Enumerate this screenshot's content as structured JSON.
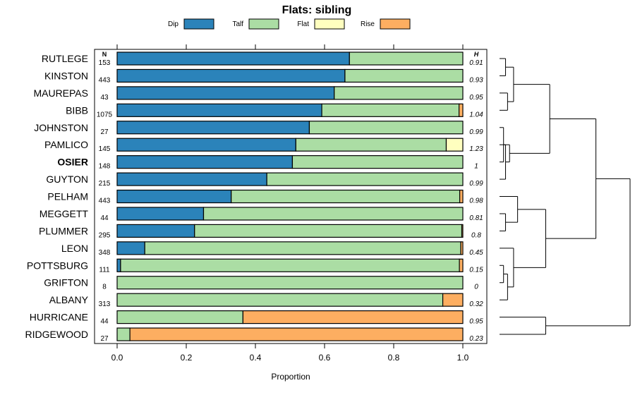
{
  "chart_data": {
    "type": "bar",
    "orientation": "horizontal-stacked",
    "title": "Flats: sibling",
    "xlabel": "Proportion",
    "xlim": [
      0,
      1
    ],
    "xticks": [
      "0.0",
      "0.2",
      "0.4",
      "0.6",
      "0.8",
      "1.0"
    ],
    "n_header": "N",
    "h_header": "H",
    "legend": [
      {
        "name": "Dip",
        "color": "#2b83ba"
      },
      {
        "name": "Talf",
        "color": "#abdda4"
      },
      {
        "name": "Flat",
        "color": "#ffffbf"
      },
      {
        "name": "Rise",
        "color": "#fdae61"
      }
    ],
    "rows": [
      {
        "label": "RUTLEGE",
        "n": "153",
        "h": "0.91",
        "bold": false,
        "values": [
          0.672,
          0.328,
          0,
          0
        ]
      },
      {
        "label": "KINSTON",
        "n": "443",
        "h": "0.93",
        "bold": false,
        "values": [
          0.659,
          0.341,
          0,
          0
        ]
      },
      {
        "label": "MAUREPAS",
        "n": "43",
        "h": "0.95",
        "bold": false,
        "values": [
          0.628,
          0.372,
          0,
          0
        ]
      },
      {
        "label": "BIBB",
        "n": "1075",
        "h": "1.04",
        "bold": false,
        "values": [
          0.592,
          0.397,
          0,
          0.011
        ]
      },
      {
        "label": "JOHNSTON",
        "n": "27",
        "h": "0.99",
        "bold": false,
        "values": [
          0.556,
          0.444,
          0,
          0
        ]
      },
      {
        "label": "PAMLICO",
        "n": "145",
        "h": "1.23",
        "bold": false,
        "values": [
          0.517,
          0.435,
          0.048,
          0
        ]
      },
      {
        "label": "OSIER",
        "n": "148",
        "h": "1",
        "bold": true,
        "values": [
          0.507,
          0.493,
          0,
          0
        ]
      },
      {
        "label": "GUYTON",
        "n": "215",
        "h": "0.99",
        "bold": false,
        "values": [
          0.433,
          0.567,
          0,
          0
        ]
      },
      {
        "label": "PELHAM",
        "n": "443",
        "h": "0.98",
        "bold": false,
        "values": [
          0.33,
          0.661,
          0,
          0.009
        ]
      },
      {
        "label": "MEGGETT",
        "n": "44",
        "h": "0.81",
        "bold": false,
        "values": [
          0.25,
          0.75,
          0,
          0
        ]
      },
      {
        "label": "PLUMMER",
        "n": "295",
        "h": "0.8",
        "bold": false,
        "values": [
          0.224,
          0.773,
          0,
          0.003
        ]
      },
      {
        "label": "LEON",
        "n": "348",
        "h": "0.45",
        "bold": false,
        "values": [
          0.08,
          0.914,
          0,
          0.006
        ]
      },
      {
        "label": "POTTSBURG",
        "n": "111",
        "h": "0.15",
        "bold": false,
        "values": [
          0.01,
          0.98,
          0,
          0.01
        ]
      },
      {
        "label": "GRIFTON",
        "n": "8",
        "h": "0",
        "bold": false,
        "values": [
          0,
          1,
          0,
          0
        ]
      },
      {
        "label": "ALBANY",
        "n": "313",
        "h": "0.32",
        "bold": false,
        "values": [
          0,
          0.942,
          0,
          0.058
        ]
      },
      {
        "label": "HURRICANE",
        "n": "44",
        "h": "0.95",
        "bold": false,
        "values": [
          0,
          0.364,
          0,
          0.636
        ]
      },
      {
        "label": "RIDGEWOOD",
        "n": "27",
        "h": "0.23",
        "bold": false,
        "values": [
          0,
          0.037,
          0,
          0.963
        ]
      }
    ],
    "dendrogram": {
      "nodes": [
        {
          "id": "a",
          "children": [
            0,
            1
          ],
          "height": 0.03
        },
        {
          "id": "b",
          "children": [
            2,
            3
          ],
          "height": 0.04
        },
        {
          "id": "c",
          "children": [
            "a",
            "b"
          ],
          "height": 0.07
        },
        {
          "id": "d",
          "children": [
            4,
            6
          ],
          "height": 0.02
        },
        {
          "id": "e",
          "children": [
            "d",
            7
          ],
          "height": 0.03
        },
        {
          "id": "f",
          "children": [
            5,
            "e"
          ],
          "height": 0.05
        },
        {
          "id": "g",
          "children": [
            "c",
            "f"
          ],
          "height": 0.25
        },
        {
          "id": "h",
          "children": [
            9,
            10
          ],
          "height": 0.03
        },
        {
          "id": "i",
          "children": [
            8,
            "h"
          ],
          "height": 0.09
        },
        {
          "id": "j",
          "children": [
            12,
            13
          ],
          "height": 0.02
        },
        {
          "id": "k",
          "children": [
            "j",
            14
          ],
          "height": 0.04
        },
        {
          "id": "l",
          "children": [
            11,
            "k"
          ],
          "height": 0.07
        },
        {
          "id": "m",
          "children": [
            "i",
            "l"
          ],
          "height": 0.23
        },
        {
          "id": "n",
          "children": [
            "g",
            "m"
          ],
          "height": 0.48
        },
        {
          "id": "o",
          "children": [
            15,
            16
          ],
          "height": 0.23
        },
        {
          "id": "root",
          "children": [
            "n",
            "o"
          ],
          "height": 0.65
        }
      ]
    }
  }
}
